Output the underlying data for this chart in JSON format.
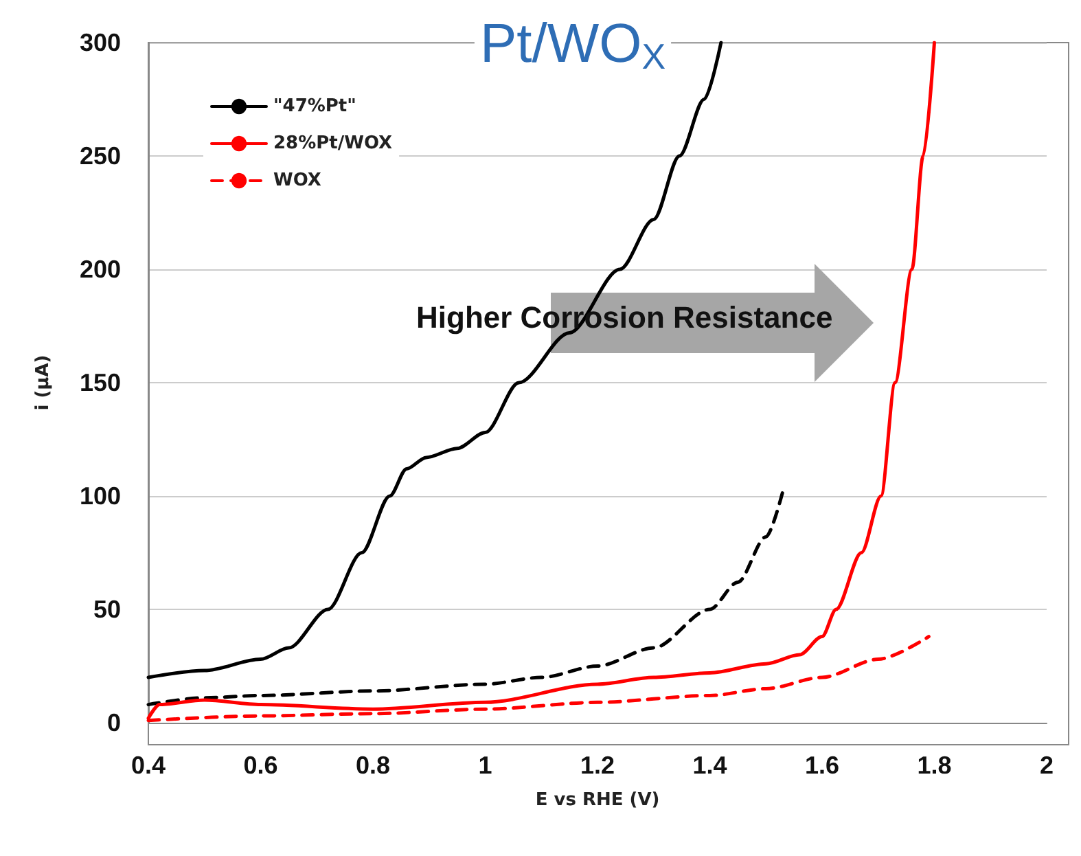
{
  "chart_data": {
    "type": "line",
    "title": "Pt/WO$_{X}$",
    "xlabel": "E vs RHE (V)",
    "ylabel": "i (μA)",
    "annotations": [
      "Higher Corrosion Resistance"
    ],
    "xlim": [
      0.4,
      2
    ],
    "xticks": [
      0.4,
      0.6,
      0.8,
      1,
      1.2,
      1.4,
      1.6,
      1.8,
      2
    ],
    "ylim": [
      0,
      300
    ],
    "yticks": [
      0,
      50,
      100,
      150,
      200,
      250,
      300
    ],
    "grid": "y",
    "legend": "top left",
    "marker": "none",
    "series": [
      {
        "name": "\"47%Pt\"",
        "color": "#000000",
        "line_style": "solid",
        "x": [
          0.4,
          0.5,
          0.6,
          0.65,
          0.72,
          0.78,
          0.83,
          0.86,
          0.895,
          0.95,
          1.0,
          1.06,
          1.15,
          1.24,
          1.3,
          1.346,
          1.39,
          1.42
        ],
        "values": [
          20,
          23,
          28,
          33,
          50,
          75,
          100,
          112,
          117,
          121,
          128,
          150,
          172,
          200,
          222,
          250,
          275,
          300
        ]
      },
      {
        "color": "#000000",
        "line_style": "dashed",
        "x": [
          0.4,
          0.5,
          0.6,
          0.8,
          1.0,
          1.1,
          1.2,
          1.3,
          1.4,
          1.45,
          1.5,
          1.53
        ],
        "values": [
          8,
          11,
          12,
          14,
          17,
          20,
          25,
          33,
          50,
          62,
          82,
          102
        ]
      },
      {
        "name": "28%Pt/WOX",
        "color": "#ff0000",
        "line_style": "solid",
        "x": [
          0.4,
          0.42,
          0.5,
          0.6,
          0.8,
          1.0,
          1.2,
          1.3,
          1.4,
          1.5,
          1.56,
          1.6,
          1.625,
          1.67,
          1.705,
          1.73,
          1.76,
          1.78,
          1.8
        ],
        "values": [
          2,
          8,
          10,
          8,
          6,
          9,
          17,
          20,
          22,
          26,
          30,
          38,
          50,
          75,
          100,
          150,
          200,
          250,
          300
        ]
      },
      {
        "name": "WOX",
        "color": "#ff0000",
        "line_style": "dashed",
        "x": [
          0.4,
          0.6,
          0.8,
          1.0,
          1.2,
          1.4,
          1.5,
          1.6,
          1.7,
          1.79
        ],
        "values": [
          1,
          3,
          4,
          6,
          9,
          12,
          15,
          20,
          28,
          38
        ]
      }
    ]
  }
}
